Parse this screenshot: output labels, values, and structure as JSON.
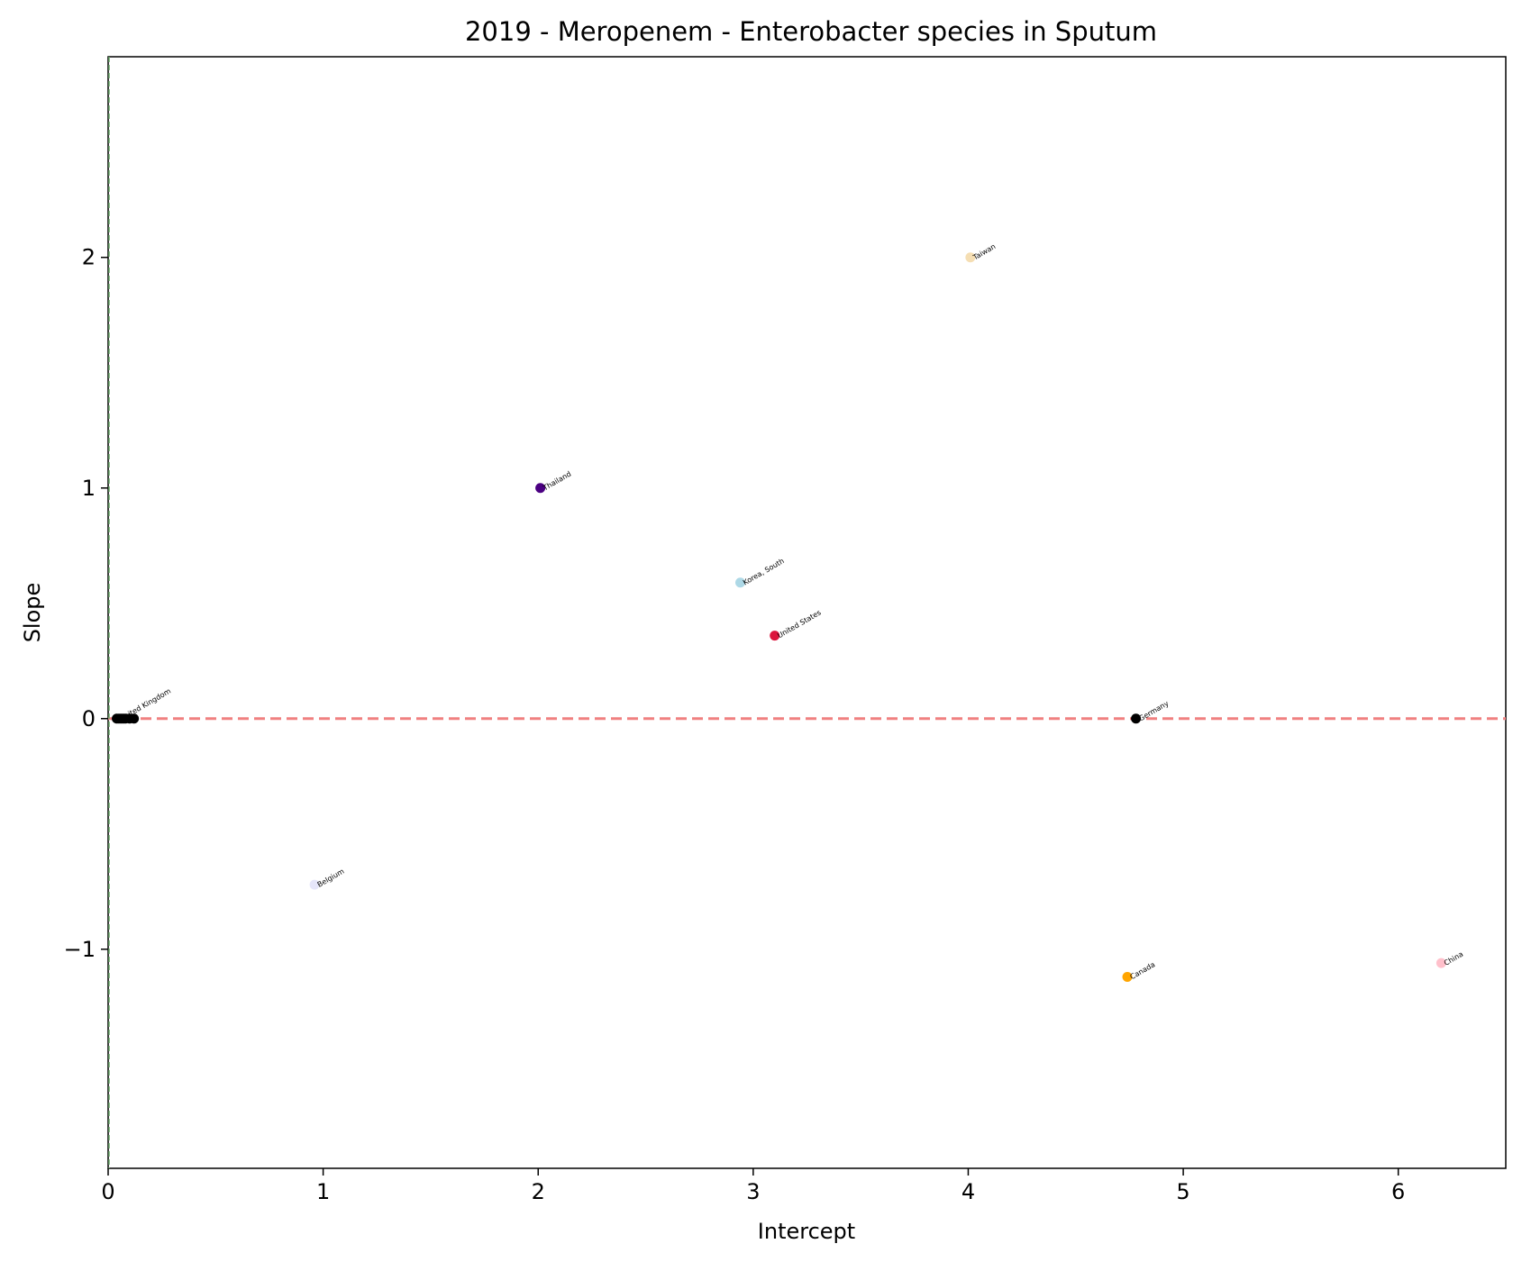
{
  "chart_data": {
    "type": "scatter",
    "title": "2019 - Meropenem - Enterobacter species in Sputum",
    "xlabel": "Intercept",
    "ylabel": "Slope",
    "xlim": [
      0,
      6.5
    ],
    "ylim": [
      -1.95,
      2.87
    ],
    "xticks": [
      0,
      1,
      2,
      3,
      4,
      5,
      6
    ],
    "yticks": [
      -1,
      0,
      1,
      2
    ],
    "xtick_labels": [
      "0",
      "1",
      "2",
      "3",
      "4",
      "5",
      "6"
    ],
    "ytick_labels": [
      "−1",
      "0",
      "1",
      "2"
    ],
    "reference_lines": [
      {
        "orientation": "horizontal",
        "value": 0,
        "color": "#f08080",
        "style": "dashed"
      },
      {
        "orientation": "vertical",
        "value": 0,
        "color": "#6aa86a",
        "style": "dashed"
      }
    ],
    "points": [
      {
        "label": "Taiwan",
        "x": 4.01,
        "y": 2.0,
        "color": "#f5deb3"
      },
      {
        "label": "Thailand",
        "x": 2.01,
        "y": 1.0,
        "color": "#4b0082"
      },
      {
        "label": "Korea, South",
        "x": 2.94,
        "y": 0.59,
        "color": "#add8e6"
      },
      {
        "label": "United States",
        "x": 3.1,
        "y": 0.36,
        "color": "#dc143c"
      },
      {
        "label": "Germany",
        "x": 4.78,
        "y": 0.0,
        "color": "#000000"
      },
      {
        "label": "Belgium",
        "x": 0.96,
        "y": -0.72,
        "color": "#e6e6fa"
      },
      {
        "label": "Canada",
        "x": 4.74,
        "y": -1.12,
        "color": "#ffa500"
      },
      {
        "label": "China",
        "x": 6.2,
        "y": -1.06,
        "color": "#ffc0cb"
      },
      {
        "label": "United Kingdom",
        "x": 0.04,
        "y": 0.0,
        "color": "#000000"
      },
      {
        "label": "",
        "x": 0.05,
        "y": 0.0,
        "color": "#000000"
      },
      {
        "label": "",
        "x": 0.06,
        "y": 0.0,
        "color": "#000000"
      },
      {
        "label": "",
        "x": 0.07,
        "y": 0.0,
        "color": "#000000"
      },
      {
        "label": "",
        "x": 0.08,
        "y": 0.0,
        "color": "#000000"
      },
      {
        "label": "",
        "x": 0.1,
        "y": 0.0,
        "color": "#000000"
      },
      {
        "label": "",
        "x": 0.12,
        "y": 0.0,
        "color": "#000000"
      }
    ],
    "grid": false,
    "legend": "none"
  }
}
